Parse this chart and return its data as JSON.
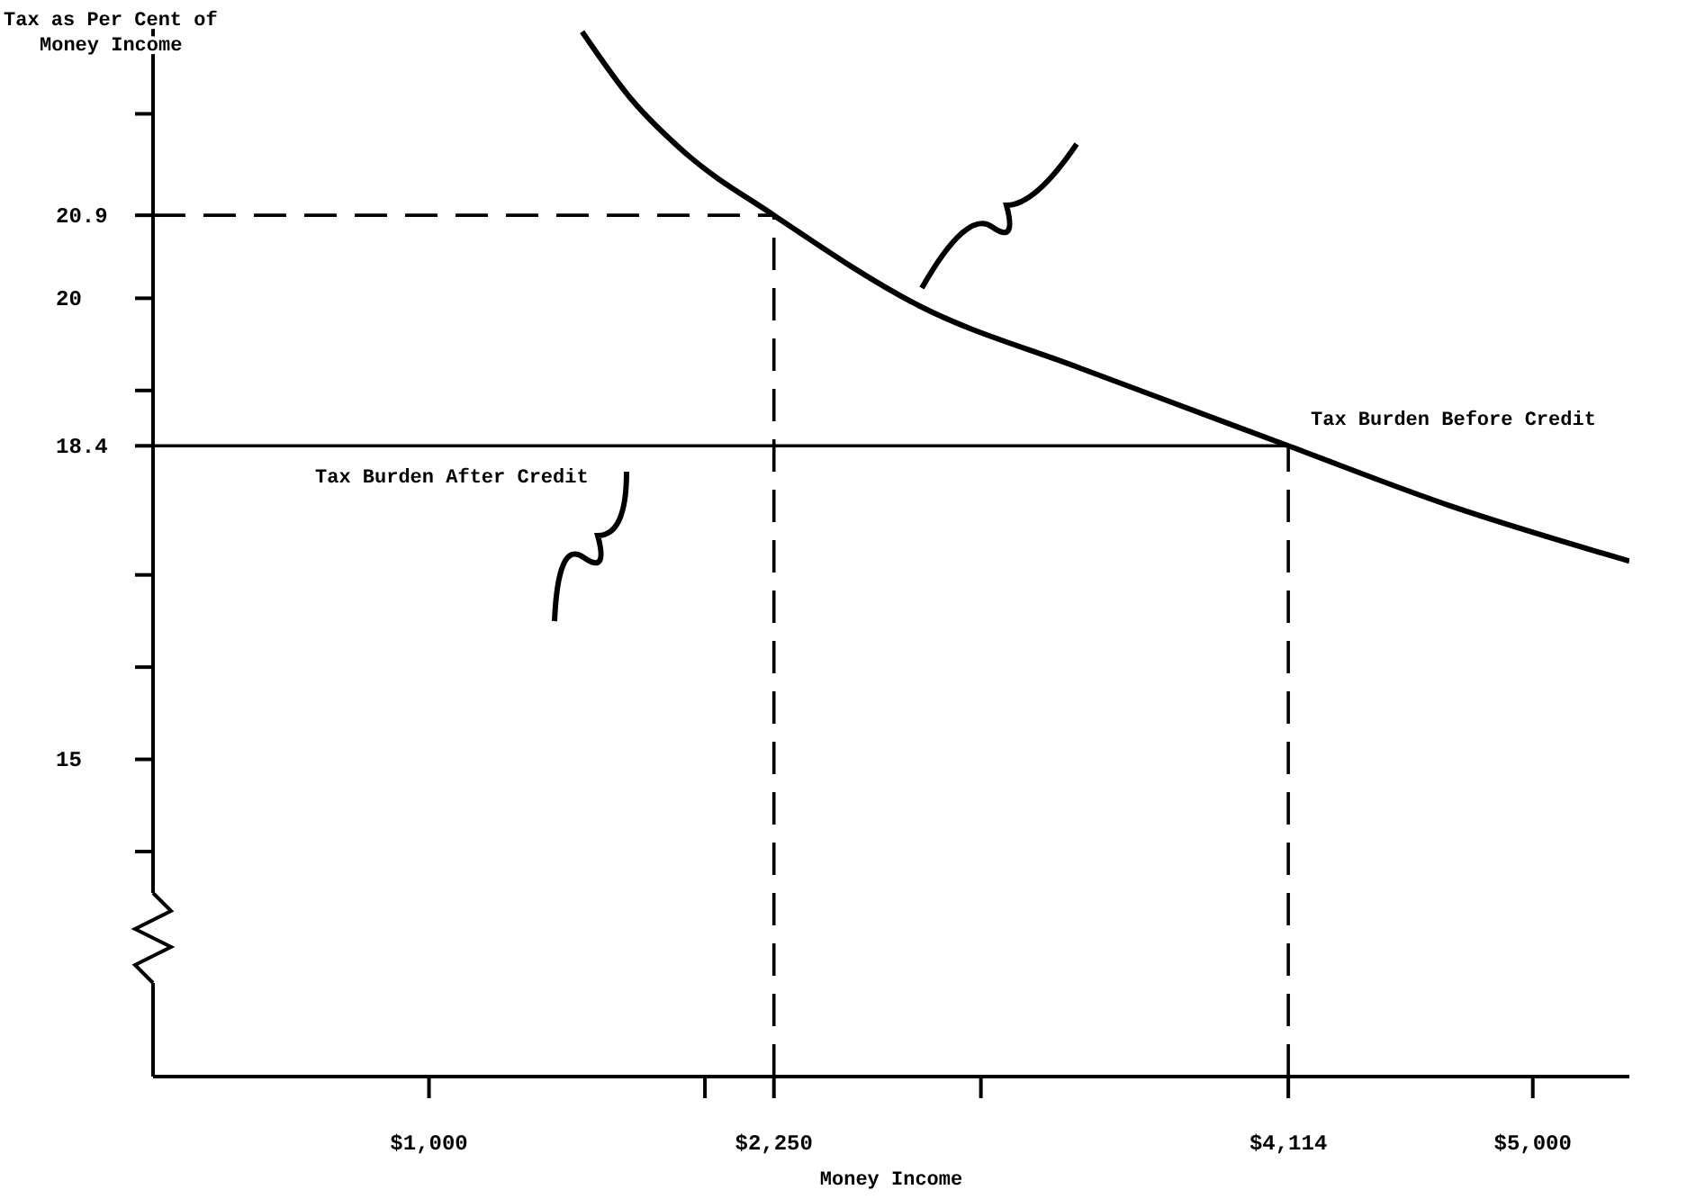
{
  "chart_data": {
    "type": "line",
    "ylabel": "Tax as Per Cent of\nMoney Income",
    "xlabel": "Money Income",
    "xlim": [
      0,
      5350
    ],
    "ylim": [
      11.56,
      23
    ],
    "xticks": [
      {
        "value": 1000,
        "label": "$1,000"
      },
      {
        "value": 2000,
        "label": null
      },
      {
        "value": 2250,
        "label": "$2,250"
      },
      {
        "value": 3000,
        "label": null
      },
      {
        "value": 4114,
        "label": "$4,114"
      },
      {
        "value": 5000,
        "label": "$5,000"
      }
    ],
    "yticks": [
      {
        "value": 22,
        "label": null
      },
      {
        "value": 20.9,
        "label": "20.9"
      },
      {
        "value": 20,
        "label": "20"
      },
      {
        "value": 19,
        "label": null
      },
      {
        "value": 18.4,
        "label": "18.4"
      },
      {
        "value": 17,
        "label": null
      },
      {
        "value": 16,
        "label": null
      },
      {
        "value": 15,
        "label": "15"
      },
      {
        "value": 14,
        "label": null
      }
    ],
    "legend": false,
    "grid": false,
    "marker": "none",
    "series": [
      {
        "name": "Tax Burden Before Credit",
        "color": "#000000",
        "x": [
          1555,
          1730,
          1927,
          2250,
          2775,
          3362,
          4114,
          4700,
          5350
        ],
        "values": [
          22.89,
          22.17,
          21.58,
          20.9,
          19.92,
          19.24,
          18.4,
          17.75,
          17.15
        ]
      },
      {
        "name": "Tax Burden After Credit",
        "color": "#000000",
        "x": [
          0,
          4114
        ],
        "values": [
          18.4,
          18.4
        ]
      },
      {
        "color": "#000000",
        "line_style": "dashed",
        "x": [
          0,
          2250
        ],
        "values": [
          20.9,
          20.9
        ]
      },
      {
        "color": "#000000",
        "line_style": "dashed",
        "x": [
          2250,
          2250
        ],
        "values": [
          11.56,
          20.9
        ]
      },
      {
        "color": "#000000",
        "line_style": "dashed",
        "x": [
          4114,
          4114
        ],
        "values": [
          11.56,
          18.4
        ]
      }
    ]
  }
}
